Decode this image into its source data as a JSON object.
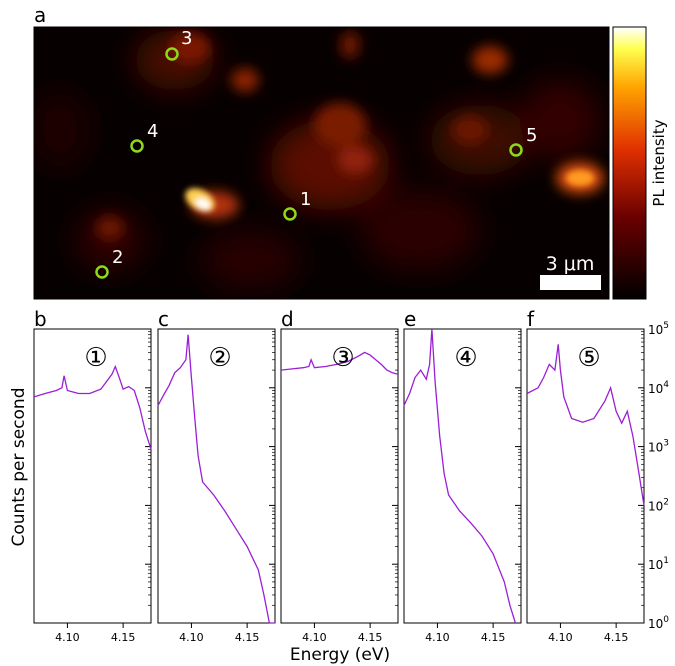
{
  "map": {
    "panel_label": "a",
    "scalebar_label": "3 μm",
    "colorbar_label": "PL intensity",
    "markers": [
      {
        "label": "1",
        "color": "#8fd81a"
      },
      {
        "label": "2",
        "color": "#8fd81a"
      },
      {
        "label": "3",
        "color": "#8fd81a"
      },
      {
        "label": "4",
        "color": "#8fd81a"
      },
      {
        "label": "5",
        "color": "#8fd81a"
      }
    ]
  },
  "spectra": {
    "ylabel": "Counts per second",
    "xlabel": "Energy (eV)",
    "xlim": [
      4.07,
      4.175
    ],
    "x_ticks": [
      "4.10",
      "4.15"
    ],
    "y_scale": "log",
    "ylim": [
      1,
      100000
    ],
    "y_ticks": [
      {
        "base": "10",
        "exp": "0",
        "value": 1
      },
      {
        "base": "10",
        "exp": "1",
        "value": 10
      },
      {
        "base": "10",
        "exp": "2",
        "value": 100
      },
      {
        "base": "10",
        "exp": "3",
        "value": 1000
      },
      {
        "base": "10",
        "exp": "4",
        "value": 10000
      },
      {
        "base": "10",
        "exp": "5",
        "value": 100000
      }
    ],
    "line_color": "#9b1fd6"
  },
  "chart_data": [
    {
      "panel": "b",
      "type": "line",
      "series": [
        {
          "name": "①",
          "x": [
            4.07,
            4.08,
            4.09,
            4.095,
            4.097,
            4.1,
            4.11,
            4.12,
            4.13,
            4.14,
            4.143,
            4.147,
            4.15,
            4.155,
            4.16,
            4.165,
            4.17,
            4.175
          ],
          "y": [
            7000,
            8000,
            9000,
            10000,
            16000,
            9000,
            8000,
            8000,
            9500,
            17000,
            23000,
            14000,
            9500,
            10500,
            9000,
            4500,
            1800,
            900
          ]
        }
      ]
    },
    {
      "panel": "c",
      "type": "line",
      "series": [
        {
          "name": "②",
          "x": [
            4.07,
            4.075,
            4.08,
            4.085,
            4.09,
            4.095,
            4.097,
            4.1,
            4.103,
            4.106,
            4.11,
            4.12,
            4.13,
            4.14,
            4.15,
            4.16,
            4.165,
            4.17,
            4.175
          ],
          "y": [
            5000,
            7500,
            11000,
            18000,
            22000,
            30000,
            80000,
            15000,
            3000,
            700,
            250,
            150,
            80,
            40,
            20,
            8,
            3,
            1,
            1
          ]
        }
      ]
    },
    {
      "panel": "d",
      "type": "line",
      "series": [
        {
          "name": "③",
          "x": [
            4.07,
            4.08,
            4.09,
            4.095,
            4.097,
            4.1,
            4.11,
            4.12,
            4.13,
            4.14,
            4.145,
            4.15,
            4.155,
            4.16,
            4.165,
            4.17,
            4.175
          ],
          "y": [
            20000,
            21000,
            22000,
            23000,
            30000,
            22000,
            23000,
            25000,
            28000,
            35000,
            40000,
            36000,
            30000,
            25000,
            20000,
            18000,
            17000
          ]
        }
      ]
    },
    {
      "panel": "e",
      "type": "line",
      "series": [
        {
          "name": "④",
          "x": [
            4.07,
            4.075,
            4.08,
            4.085,
            4.09,
            4.093,
            4.095,
            4.098,
            4.102,
            4.106,
            4.11,
            4.12,
            4.13,
            4.14,
            4.15,
            4.16,
            4.165,
            4.17
          ],
          "y": [
            5000,
            8000,
            15000,
            20000,
            14000,
            25000,
            100000,
            12000,
            1500,
            350,
            150,
            80,
            50,
            30,
            15,
            5,
            2,
            1
          ]
        }
      ]
    },
    {
      "panel": "f",
      "type": "line",
      "series": [
        {
          "name": "⑤",
          "x": [
            4.07,
            4.08,
            4.085,
            4.09,
            4.095,
            4.098,
            4.1,
            4.103,
            4.11,
            4.12,
            4.13,
            4.14,
            4.145,
            4.15,
            4.155,
            4.16,
            4.165,
            4.17,
            4.175
          ],
          "y": [
            8000,
            10000,
            15000,
            25000,
            20000,
            55000,
            20000,
            7000,
            3000,
            2600,
            3000,
            6000,
            10000,
            4000,
            2500,
            4000,
            1500,
            400,
            100
          ]
        }
      ]
    }
  ]
}
